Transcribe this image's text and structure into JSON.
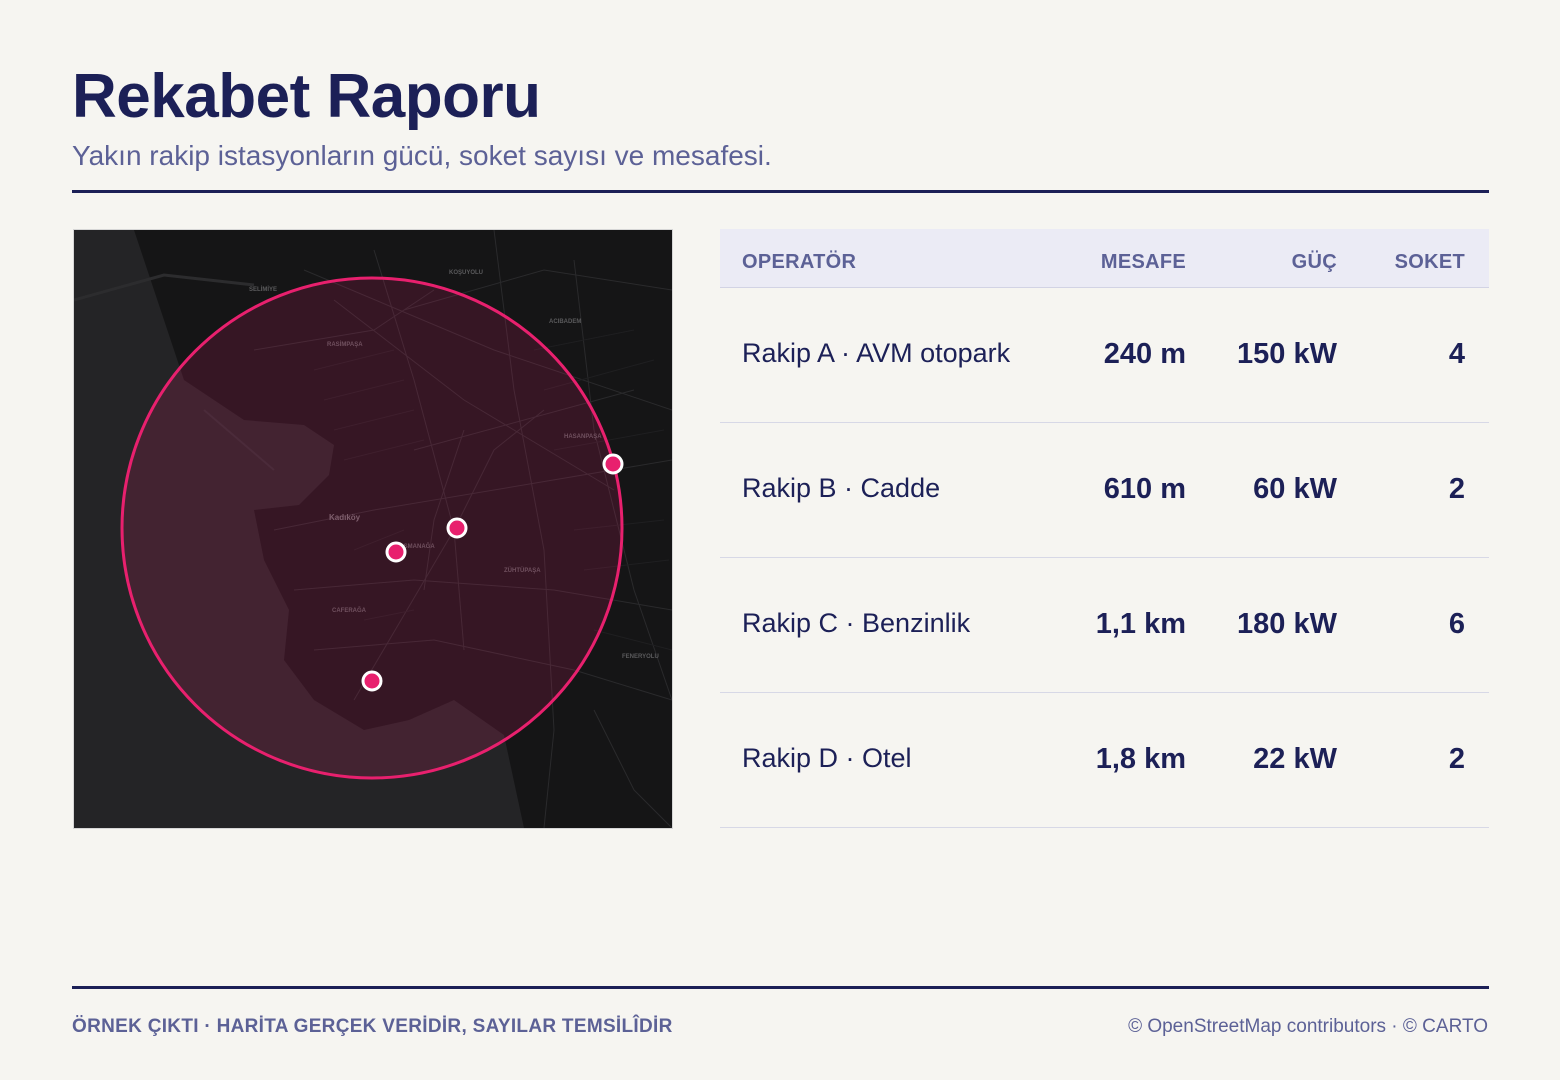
{
  "header": {
    "title": "Rekabet Raporu",
    "subtitle": "Yakın rakip istasyonların gücü, soket sayısı ve mesafesi."
  },
  "map": {
    "basemap": "dark",
    "radius_circle_color": "#e8206e",
    "marker_color": "#e8206e",
    "place_labels": {
      "kadikoy": "Kadıköy",
      "rasimpasa": "RASİMPAŞA",
      "osmanaga": "OSMANAĞA",
      "caferaga": "CAFERAĞA",
      "zuhtupasa": "ZÜHTÜPAŞA",
      "hasanpasa": "HASANPAŞA",
      "acibadem": "ACIBADEM",
      "kosuyolu": "KOŞUYOLU",
      "selimiye": "SELİMİYE",
      "fenerbahce": "FENERYOLU"
    }
  },
  "table": {
    "columns": {
      "operator": "OPERATÖR",
      "distance": "MESAFE",
      "power": "GÜÇ",
      "sockets": "SOKET"
    },
    "rows": [
      {
        "operator": "Rakip A · AVM otopark",
        "distance": "240 m",
        "power": "150 kW",
        "sockets": "4"
      },
      {
        "operator": "Rakip B · Cadde",
        "distance": "610 m",
        "power": "60 kW",
        "sockets": "2"
      },
      {
        "operator": "Rakip C · Benzinlik",
        "distance": "1,1 km",
        "power": "180 kW",
        "sockets": "6"
      },
      {
        "operator": "Rakip D · Otel",
        "distance": "1,8 km",
        "power": "22 kW",
        "sockets": "2"
      }
    ]
  },
  "footer": {
    "note": "ÖRNEK ÇIKTI · HARİTA GERÇEK VERİDİR, SAYILAR TEMSİLÎDİR",
    "attribution": "© OpenStreetMap contributors · © CARTO"
  }
}
